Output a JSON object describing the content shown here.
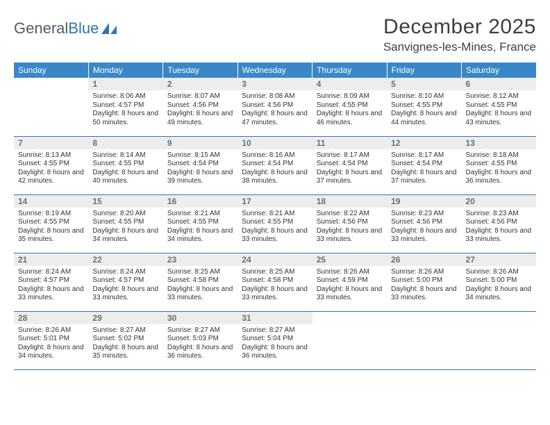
{
  "logo": {
    "text1": "General",
    "text2": "Blue"
  },
  "title": "December 2025",
  "location": "Sanvignes-les-Mines, France",
  "colors": {
    "header_bg": "#3a87c8",
    "header_text": "#ffffff",
    "rule": "#2f74b5",
    "daybar_bg": "#ededed",
    "daybar_text": "#6a6f75",
    "page_bg": "#ffffff",
    "body_text": "#333333",
    "logo_gray": "#555b61",
    "logo_blue": "#2f74b5"
  },
  "weekdays": [
    "Sunday",
    "Monday",
    "Tuesday",
    "Wednesday",
    "Thursday",
    "Friday",
    "Saturday"
  ],
  "weeks": [
    [
      null,
      {
        "n": "1",
        "sr": "8:06 AM",
        "ss": "4:57 PM",
        "dl": "8 hours and 50 minutes."
      },
      {
        "n": "2",
        "sr": "8:07 AM",
        "ss": "4:56 PM",
        "dl": "8 hours and 49 minutes."
      },
      {
        "n": "3",
        "sr": "8:08 AM",
        "ss": "4:56 PM",
        "dl": "8 hours and 47 minutes."
      },
      {
        "n": "4",
        "sr": "8:09 AM",
        "ss": "4:55 PM",
        "dl": "8 hours and 46 minutes."
      },
      {
        "n": "5",
        "sr": "8:10 AM",
        "ss": "4:55 PM",
        "dl": "8 hours and 44 minutes."
      },
      {
        "n": "6",
        "sr": "8:12 AM",
        "ss": "4:55 PM",
        "dl": "8 hours and 43 minutes."
      }
    ],
    [
      {
        "n": "7",
        "sr": "8:13 AM",
        "ss": "4:55 PM",
        "dl": "8 hours and 42 minutes."
      },
      {
        "n": "8",
        "sr": "8:14 AM",
        "ss": "4:55 PM",
        "dl": "8 hours and 40 minutes."
      },
      {
        "n": "9",
        "sr": "8:15 AM",
        "ss": "4:54 PM",
        "dl": "8 hours and 39 minutes."
      },
      {
        "n": "10",
        "sr": "8:16 AM",
        "ss": "4:54 PM",
        "dl": "8 hours and 38 minutes."
      },
      {
        "n": "11",
        "sr": "8:17 AM",
        "ss": "4:54 PM",
        "dl": "8 hours and 37 minutes."
      },
      {
        "n": "12",
        "sr": "8:17 AM",
        "ss": "4:54 PM",
        "dl": "8 hours and 37 minutes."
      },
      {
        "n": "13",
        "sr": "8:18 AM",
        "ss": "4:55 PM",
        "dl": "8 hours and 36 minutes."
      }
    ],
    [
      {
        "n": "14",
        "sr": "8:19 AM",
        "ss": "4:55 PM",
        "dl": "8 hours and 35 minutes."
      },
      {
        "n": "15",
        "sr": "8:20 AM",
        "ss": "4:55 PM",
        "dl": "8 hours and 34 minutes."
      },
      {
        "n": "16",
        "sr": "8:21 AM",
        "ss": "4:55 PM",
        "dl": "8 hours and 34 minutes."
      },
      {
        "n": "17",
        "sr": "8:21 AM",
        "ss": "4:55 PM",
        "dl": "8 hours and 33 minutes."
      },
      {
        "n": "18",
        "sr": "8:22 AM",
        "ss": "4:56 PM",
        "dl": "8 hours and 33 minutes."
      },
      {
        "n": "19",
        "sr": "8:23 AM",
        "ss": "4:56 PM",
        "dl": "8 hours and 33 minutes."
      },
      {
        "n": "20",
        "sr": "8:23 AM",
        "ss": "4:56 PM",
        "dl": "8 hours and 33 minutes."
      }
    ],
    [
      {
        "n": "21",
        "sr": "8:24 AM",
        "ss": "4:57 PM",
        "dl": "8 hours and 33 minutes."
      },
      {
        "n": "22",
        "sr": "8:24 AM",
        "ss": "4:57 PM",
        "dl": "8 hours and 33 minutes."
      },
      {
        "n": "23",
        "sr": "8:25 AM",
        "ss": "4:58 PM",
        "dl": "8 hours and 33 minutes."
      },
      {
        "n": "24",
        "sr": "8:25 AM",
        "ss": "4:58 PM",
        "dl": "8 hours and 33 minutes."
      },
      {
        "n": "25",
        "sr": "8:26 AM",
        "ss": "4:59 PM",
        "dl": "8 hours and 33 minutes."
      },
      {
        "n": "26",
        "sr": "8:26 AM",
        "ss": "5:00 PM",
        "dl": "8 hours and 33 minutes."
      },
      {
        "n": "27",
        "sr": "8:26 AM",
        "ss": "5:00 PM",
        "dl": "8 hours and 34 minutes."
      }
    ],
    [
      {
        "n": "28",
        "sr": "8:26 AM",
        "ss": "5:01 PM",
        "dl": "8 hours and 34 minutes."
      },
      {
        "n": "29",
        "sr": "8:27 AM",
        "ss": "5:02 PM",
        "dl": "8 hours and 35 minutes."
      },
      {
        "n": "30",
        "sr": "8:27 AM",
        "ss": "5:03 PM",
        "dl": "8 hours and 36 minutes."
      },
      {
        "n": "31",
        "sr": "8:27 AM",
        "ss": "5:04 PM",
        "dl": "8 hours and 36 minutes."
      },
      null,
      null,
      null
    ]
  ],
  "labels": {
    "sunrise": "Sunrise:",
    "sunset": "Sunset:",
    "daylight": "Daylight:"
  }
}
